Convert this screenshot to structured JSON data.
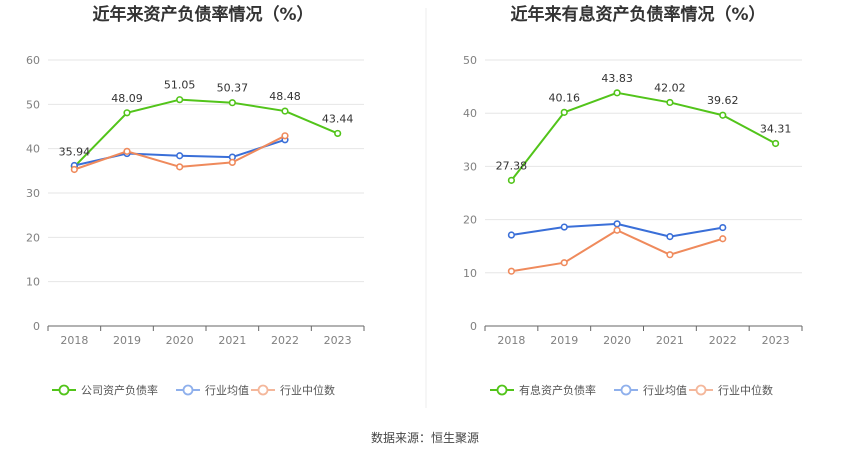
{
  "chart_data": [
    {
      "type": "line",
      "title": "近年来资产负债率情况（%）",
      "categories": [
        "2018",
        "2019",
        "2020",
        "2021",
        "2022",
        "2023"
      ],
      "ylim": [
        0,
        60
      ],
      "yticks": [
        0,
        10,
        20,
        30,
        40,
        50,
        60
      ],
      "grid": true,
      "legend_position": "bottom",
      "series": [
        {
          "name": "公司资产负债率",
          "color": "#52c41a",
          "values": [
            35.94,
            48.09,
            51.05,
            50.37,
            48.48,
            43.44
          ],
          "labels": [
            "35.94",
            "48.09",
            "51.05",
            "50.37",
            "48.48",
            "43.44"
          ]
        },
        {
          "name": "行业均值",
          "color": "#3a6fd8",
          "values": [
            36.2,
            38.9,
            38.4,
            38.1,
            42.0,
            null
          ],
          "labels": null
        },
        {
          "name": "行业中位数",
          "color": "#ef8a5c",
          "values": [
            35.3,
            39.4,
            35.9,
            36.9,
            42.9,
            null
          ],
          "labels": null
        }
      ]
    },
    {
      "type": "line",
      "title": "近年来有息资产负债率情况（%）",
      "categories": [
        "2018",
        "2019",
        "2020",
        "2021",
        "2022",
        "2023"
      ],
      "ylim": [
        0,
        50
      ],
      "yticks": [
        0,
        10,
        20,
        30,
        40,
        50
      ],
      "grid": true,
      "legend_position": "bottom",
      "series": [
        {
          "name": "有息资产负债率",
          "color": "#52c41a",
          "values": [
            27.38,
            40.16,
            43.83,
            42.02,
            39.62,
            34.31
          ],
          "labels": [
            "27.38",
            "40.16",
            "43.83",
            "42.02",
            "39.62",
            "34.31"
          ]
        },
        {
          "name": "行业均值",
          "color": "#3a6fd8",
          "values": [
            17.1,
            18.6,
            19.2,
            16.8,
            18.5,
            null
          ],
          "labels": null
        },
        {
          "name": "行业中位数",
          "color": "#ef8a5c",
          "values": [
            10.3,
            11.9,
            18.0,
            13.4,
            16.4,
            null
          ],
          "labels": null
        }
      ]
    }
  ],
  "footer": {
    "source": "数据来源：恒生聚源"
  }
}
